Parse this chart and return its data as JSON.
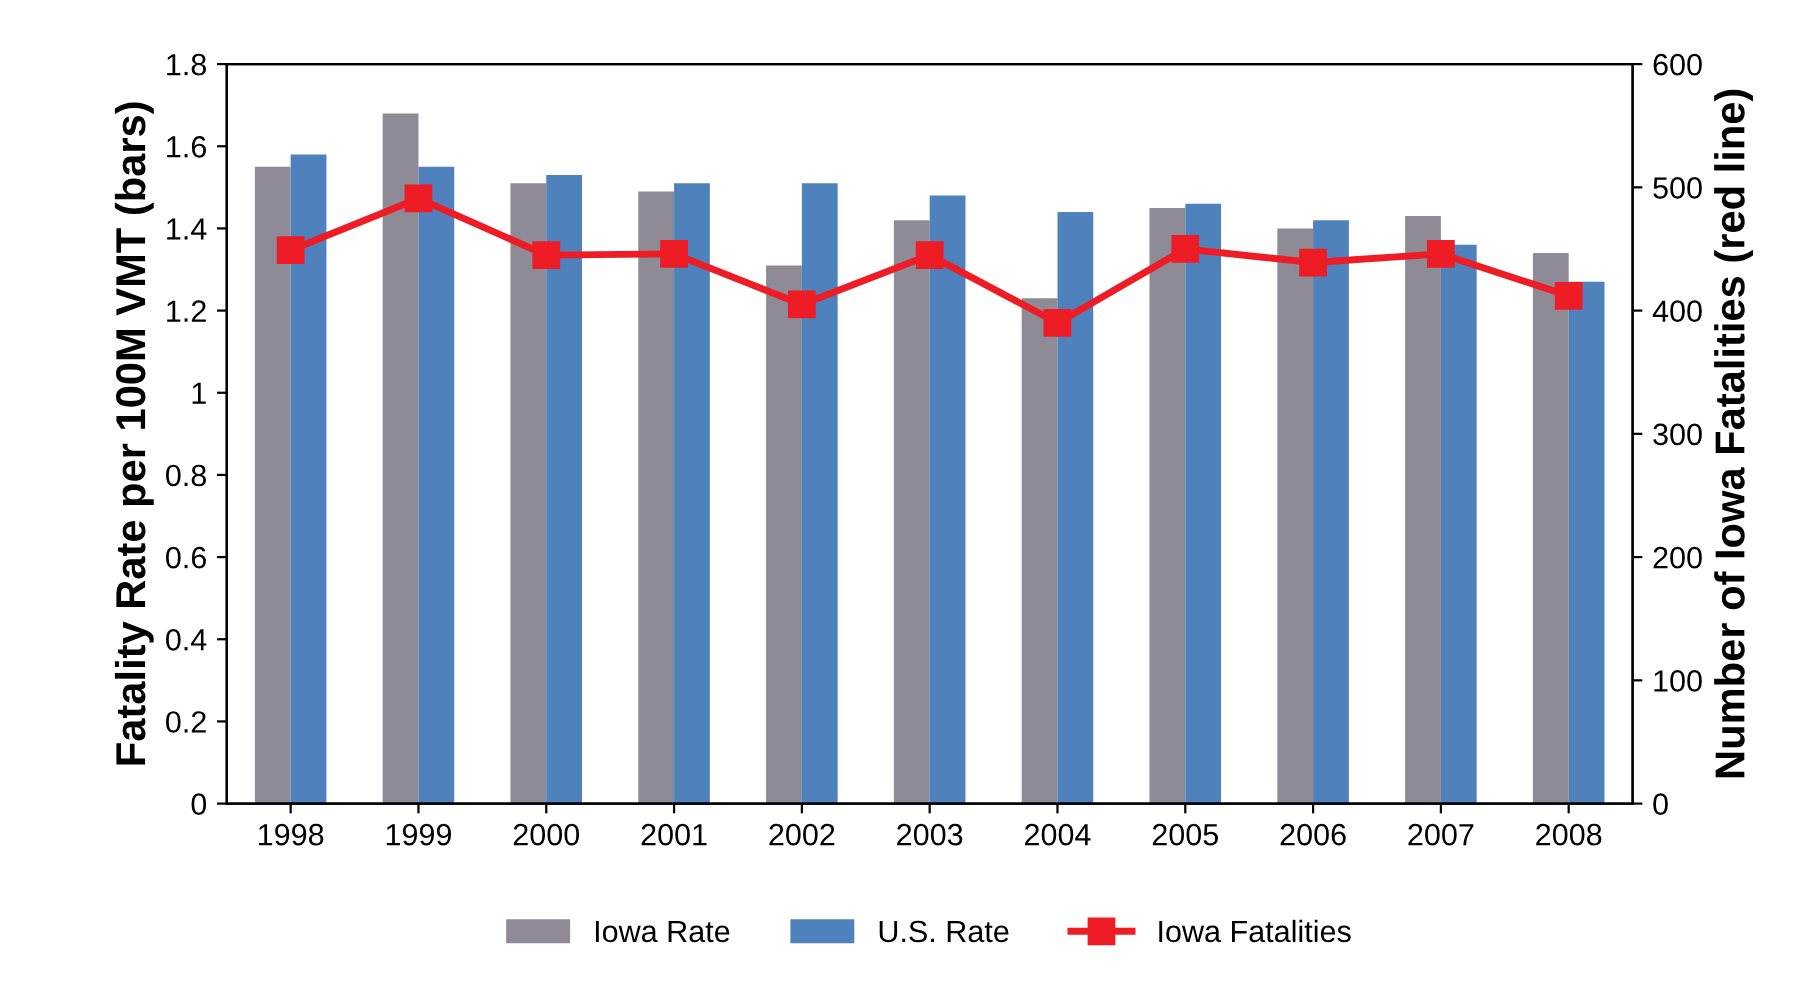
{
  "chart_data": {
    "type": "bar",
    "ylabel": "Fatality Rate per 100M VMT (bars)",
    "y2label": "Number of Iowa Fatalities (red line)",
    "categories": [
      "1998",
      "1999",
      "2000",
      "2001",
      "2002",
      "2003",
      "2004",
      "2005",
      "2006",
      "2007",
      "2008"
    ],
    "series": [
      {
        "name": "Iowa Rate",
        "color": "#8e8a96",
        "values": [
          1.55,
          1.68,
          1.51,
          1.49,
          1.31,
          1.42,
          1.23,
          1.45,
          1.4,
          1.43,
          1.34
        ]
      },
      {
        "name": "U.S. Rate",
        "color": "#4f81bd",
        "values": [
          1.58,
          1.55,
          1.53,
          1.51,
          1.51,
          1.48,
          1.44,
          1.46,
          1.42,
          1.36,
          1.27
        ]
      },
      {
        "name": "Iowa Fatalities",
        "type": "line",
        "axis": "y2",
        "color": "#ee1c25",
        "marker": "square",
        "values": [
          449,
          491,
          445,
          446,
          405,
          445,
          390,
          450,
          439,
          446,
          412
        ]
      }
    ],
    "ylim": [
      0,
      1.8
    ],
    "yticks": [
      0,
      0.2,
      0.4,
      0.6,
      0.8,
      1,
      1.2,
      1.4,
      1.6,
      1.8
    ],
    "y2lim": [
      0,
      600
    ],
    "y2ticks": [
      0,
      100,
      200,
      300,
      400,
      500,
      600
    ],
    "grid": false,
    "legend": "bottom"
  }
}
